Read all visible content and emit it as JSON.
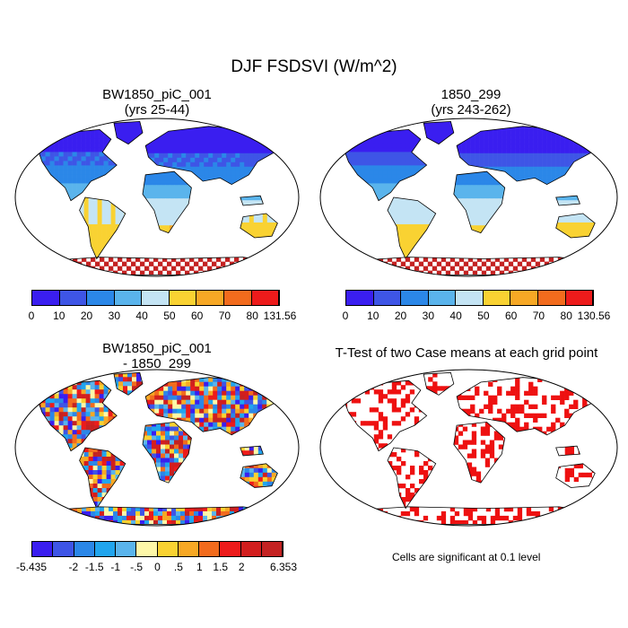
{
  "chart_data": {
    "title": "DJF FSDSVI (W/m^2)",
    "panels": [
      {
        "id": "case1",
        "type": "heatmap",
        "title_line1": "BW1850_piC_001",
        "title_line2": "(yrs 25-44)",
        "colorbar": {
          "levels": [
            0,
            10,
            20,
            30,
            40,
            50,
            60,
            70,
            80,
            131.56
          ],
          "labels": [
            "0",
            "10",
            "20",
            "30",
            "40",
            "50",
            "60",
            "70",
            "80",
            "131.56"
          ],
          "colors": [
            "#3a1ef0",
            "#3e55e6",
            "#2b87e8",
            "#5ab4ec",
            "#c4e4f4",
            "#f9d232",
            "#f7a825",
            "#f26b1d",
            "#ed1b1b",
            "#c42222"
          ]
        }
      },
      {
        "id": "case2",
        "type": "heatmap",
        "title_line1": "1850_299",
        "title_line2": "(yrs 243-262)",
        "colorbar": {
          "levels": [
            0,
            10,
            20,
            30,
            40,
            50,
            60,
            70,
            80,
            130.56
          ],
          "labels": [
            "0",
            "10",
            "20",
            "30",
            "40",
            "50",
            "60",
            "70",
            "80",
            "130.56"
          ],
          "colors": [
            "#3a1ef0",
            "#3e55e6",
            "#2b87e8",
            "#5ab4ec",
            "#c4e4f4",
            "#f9d232",
            "#f7a825",
            "#f26b1d",
            "#ed1b1b",
            "#c42222"
          ]
        }
      },
      {
        "id": "diff",
        "type": "heatmap",
        "title_line1": "BW1850_piC_001",
        "title_line2": "- 1850_299",
        "colorbar": {
          "levels": [
            -5.435,
            -2,
            -1.5,
            -1,
            -0.5,
            0,
            0.5,
            1,
            1.5,
            2,
            6.353
          ],
          "labels": [
            "-5.435",
            "",
            "-2",
            "-1.5",
            "-1",
            "-.5",
            "0",
            ".5",
            "1",
            "1.5",
            "2",
            "",
            "6.353"
          ],
          "colors": [
            "#3a1ef0",
            "#3e55e6",
            "#2b87e8",
            "#21a5ee",
            "#5ab4ec",
            "#fdf7a8",
            "#f9d232",
            "#f7a825",
            "#f26b1d",
            "#ed1b1b",
            "#d21e1e",
            "#c42222"
          ]
        }
      },
      {
        "id": "ttest",
        "type": "heatmap",
        "title_line1": "T-Test of two Case means at each grid point",
        "note": "Cells are significant at 0.1 level",
        "sig_color": "#ee1111"
      }
    ]
  }
}
